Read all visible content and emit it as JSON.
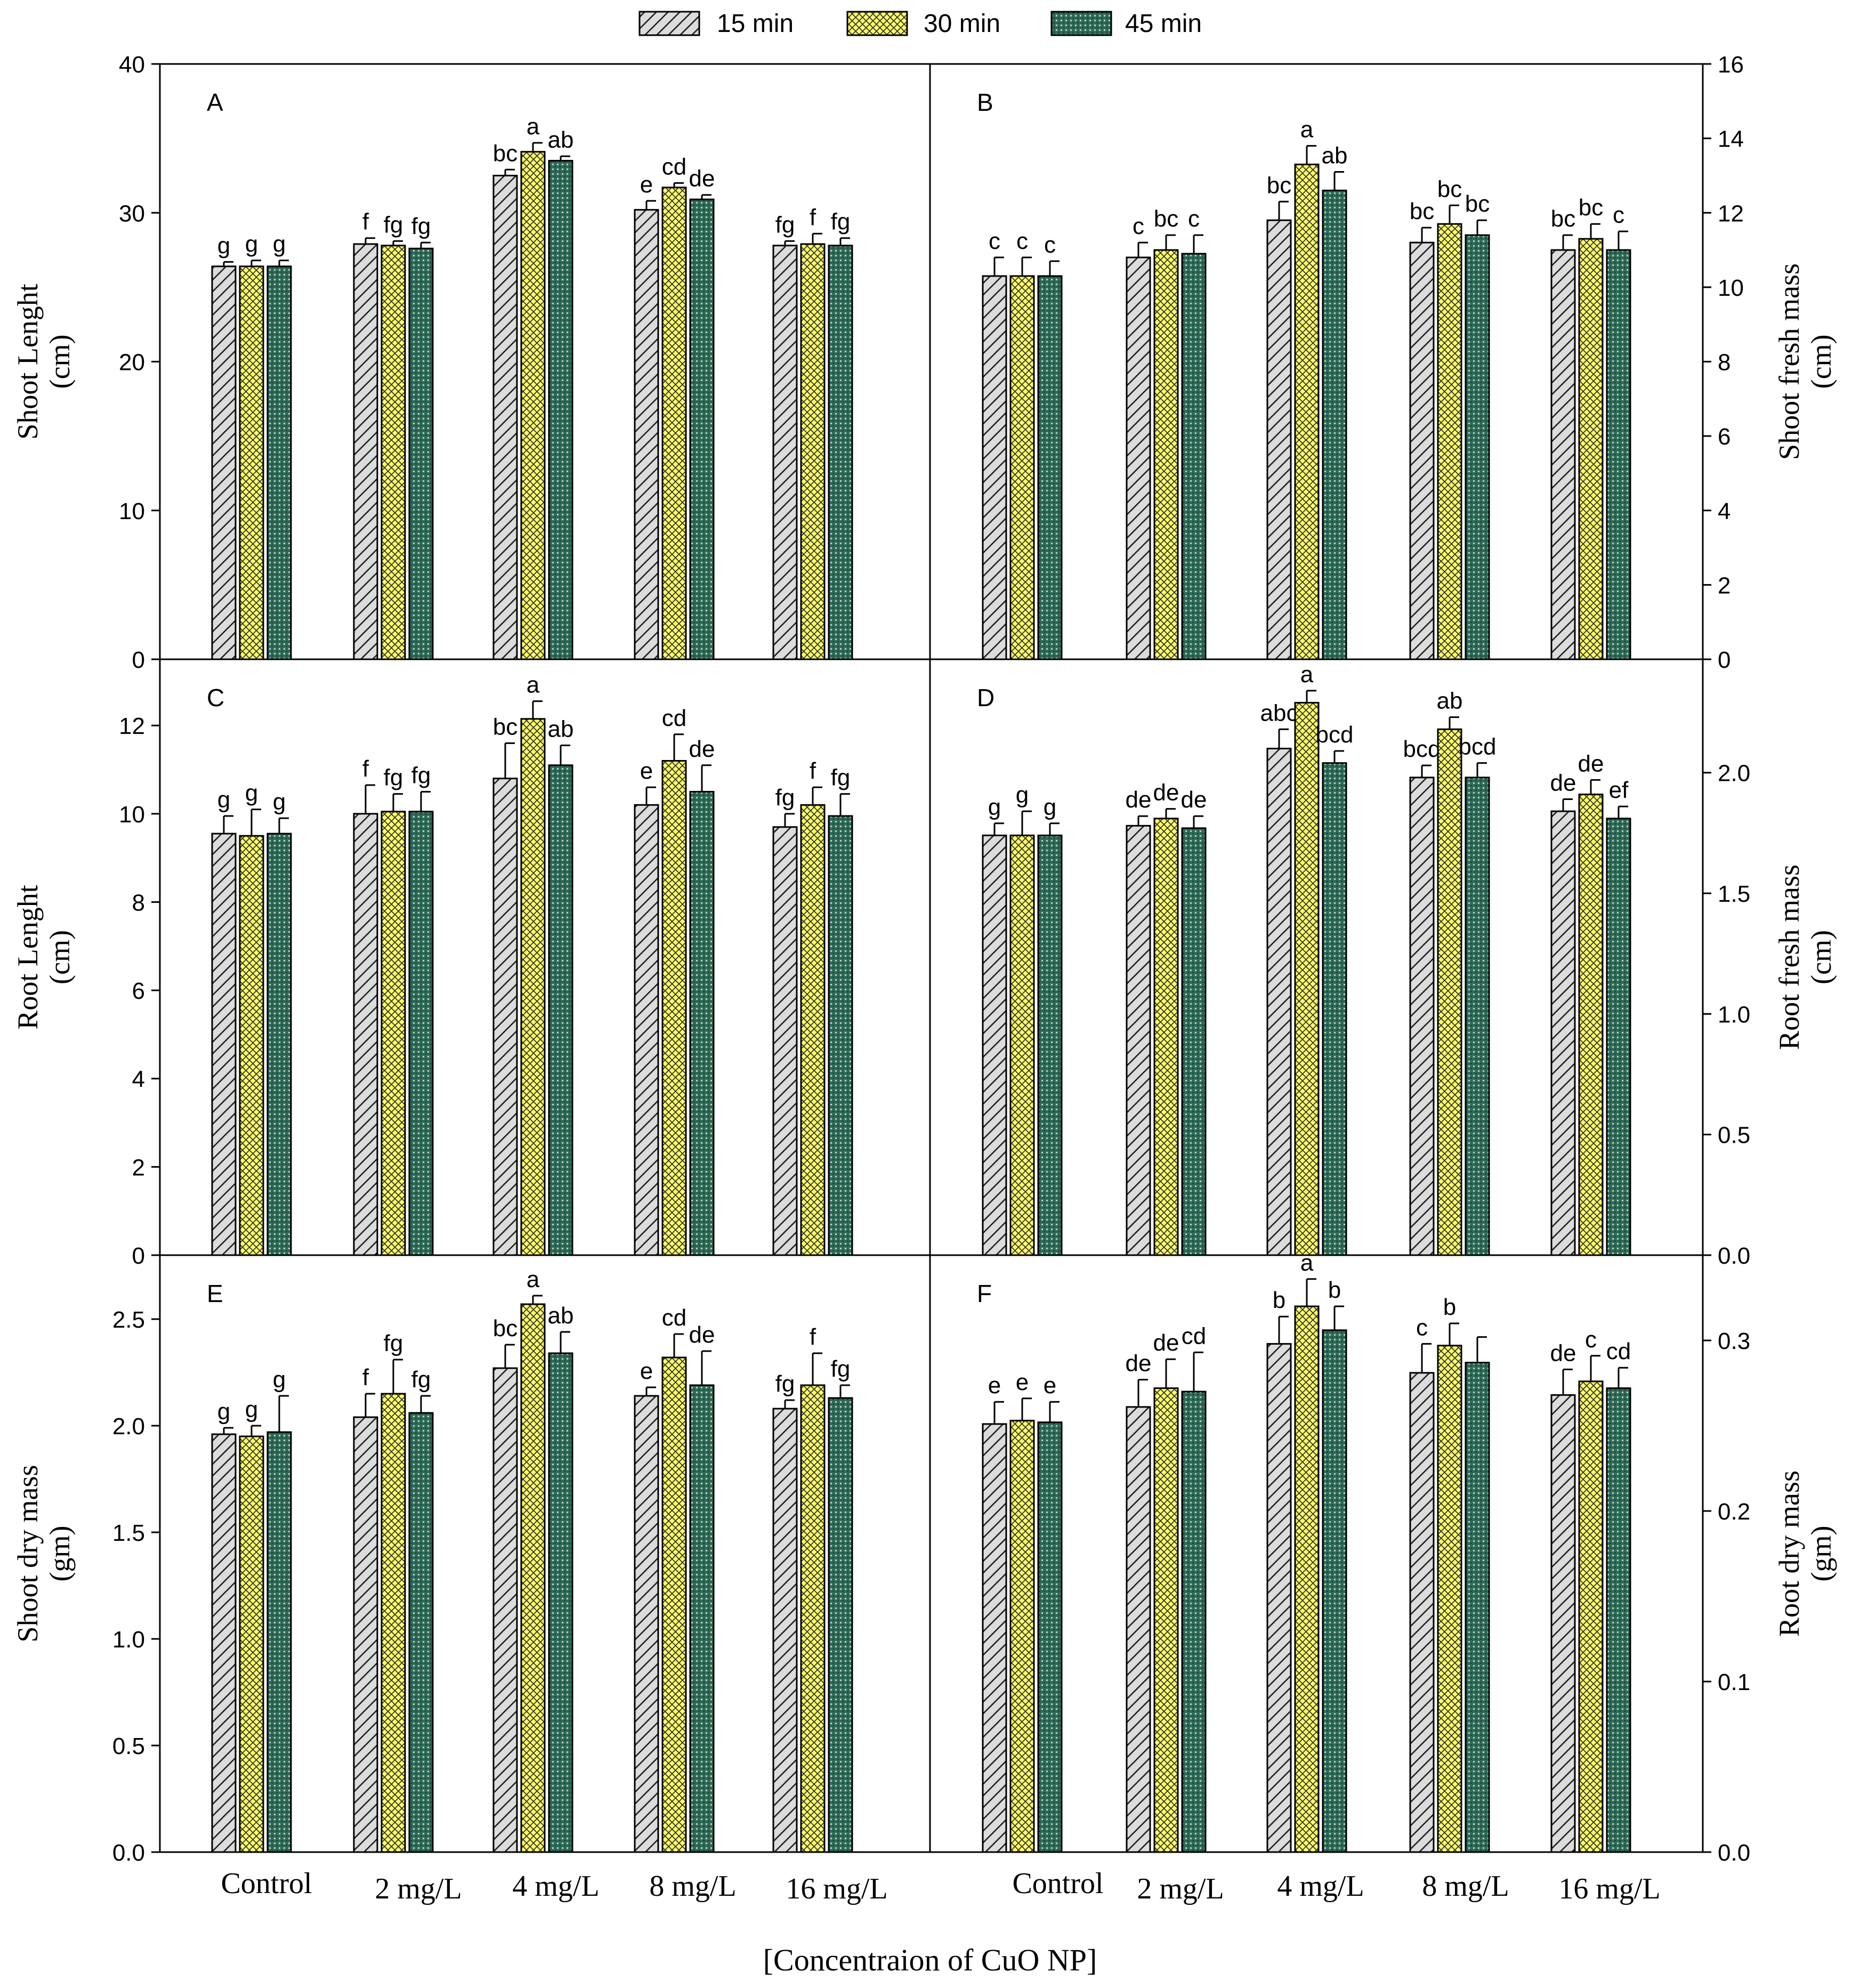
{
  "figure": {
    "xlabel": "[Concentraion of CuO NP]",
    "legend": [
      {
        "name": "15 min",
        "pattern": "hatch",
        "color": "#dcdcdc"
      },
      {
        "name": "30 min",
        "pattern": "crosshatch",
        "color": "#ffff66"
      },
      {
        "name": "45 min",
        "pattern": "dots",
        "color": "#2e6b58"
      }
    ],
    "categories": [
      "Control",
      "2 mg/L",
      "4 mg/L",
      "8 mg/L",
      "16 mg/L"
    ]
  },
  "chart_data": [
    {
      "panel": "A",
      "type": "bar",
      "ylabel": [
        "Shoot Lenght",
        "(cm)"
      ],
      "axis_side": "left",
      "ylim": [
        0,
        40
      ],
      "yticks": [
        "0",
        "10",
        "20",
        "30",
        "40"
      ],
      "ytick_values": [
        0,
        10,
        20,
        30,
        40
      ],
      "series": [
        {
          "name": "15 min",
          "values": [
            26.4,
            27.9,
            32.5,
            30.2,
            27.8
          ],
          "errors": [
            0.3,
            0.4,
            0.4,
            0.6,
            0.3
          ],
          "labels": [
            "g",
            "f",
            "bc",
            "e",
            "fg"
          ]
        },
        {
          "name": "30 min",
          "values": [
            26.4,
            27.8,
            34.1,
            31.7,
            27.9
          ],
          "errors": [
            0.4,
            0.3,
            0.6,
            0.3,
            0.7
          ],
          "labels": [
            "g",
            "fg",
            "a",
            "cd",
            "f"
          ]
        },
        {
          "name": "45 min",
          "values": [
            26.4,
            27.6,
            33.5,
            30.9,
            27.8
          ],
          "errors": [
            0.4,
            0.4,
            0.3,
            0.3,
            0.5
          ],
          "labels": [
            "g",
            "fg",
            "ab",
            "de",
            "fg"
          ]
        }
      ]
    },
    {
      "panel": "B",
      "type": "bar",
      "ylabel": [
        "Shoot fresh mass",
        "(cm)"
      ],
      "axis_side": "right",
      "ylim": [
        0,
        16
      ],
      "yticks": [
        "0",
        "2",
        "4",
        "6",
        "8",
        "10",
        "12",
        "14",
        "16"
      ],
      "ytick_values": [
        0,
        2,
        4,
        6,
        8,
        10,
        12,
        14,
        16
      ],
      "series": [
        {
          "name": "15 min",
          "values": [
            10.3,
            10.8,
            11.8,
            11.2,
            11.0
          ],
          "errors": [
            0.5,
            0.4,
            0.5,
            0.4,
            0.4
          ],
          "labels": [
            "c",
            "c",
            "bc",
            "bc",
            "bc"
          ]
        },
        {
          "name": "30 min",
          "values": [
            10.3,
            11.0,
            13.3,
            11.7,
            11.3
          ],
          "errors": [
            0.5,
            0.4,
            0.5,
            0.5,
            0.4
          ],
          "labels": [
            "c",
            "bc",
            "a",
            "bc",
            "bc"
          ]
        },
        {
          "name": "45 min",
          "values": [
            10.3,
            10.9,
            12.6,
            11.4,
            11.0
          ],
          "errors": [
            0.4,
            0.5,
            0.5,
            0.4,
            0.5
          ],
          "labels": [
            "c",
            "c",
            "ab",
            "bc",
            "c"
          ]
        }
      ]
    },
    {
      "panel": "C",
      "type": "bar",
      "ylabel": [
        "Root Lenght",
        "(cm)"
      ],
      "axis_side": "left",
      "ylim": [
        0,
        13.5
      ],
      "yticks": [
        "0",
        "2",
        "4",
        "6",
        "8",
        "10",
        "12"
      ],
      "ytick_values": [
        0,
        2,
        4,
        6,
        8,
        10,
        12
      ],
      "series": [
        {
          "name": "15 min",
          "values": [
            9.55,
            10.0,
            10.8,
            10.2,
            9.7
          ],
          "errors": [
            0.4,
            0.65,
            0.8,
            0.4,
            0.3
          ],
          "labels": [
            "g",
            "f",
            "bc",
            "e",
            "fg"
          ]
        },
        {
          "name": "30 min",
          "values": [
            9.5,
            10.05,
            12.15,
            11.2,
            10.2
          ],
          "errors": [
            0.6,
            0.4,
            0.4,
            0.6,
            0.4
          ],
          "labels": [
            "g",
            "fg",
            "a",
            "cd",
            "f"
          ]
        },
        {
          "name": "45 min",
          "values": [
            9.55,
            10.05,
            11.1,
            10.5,
            9.95
          ],
          "errors": [
            0.35,
            0.45,
            0.45,
            0.6,
            0.5
          ],
          "labels": [
            "g",
            "fg",
            "ab",
            "de",
            "fg"
          ]
        }
      ]
    },
    {
      "panel": "D",
      "type": "bar",
      "ylabel": [
        "Root fresh mass",
        "(cm)"
      ],
      "axis_side": "right",
      "ylim": [
        0,
        2.47
      ],
      "yticks": [
        "0.0",
        "0.5",
        "1.0",
        "1.5",
        "2.0"
      ],
      "ytick_values": [
        0,
        0.5,
        1.0,
        1.5,
        2.0
      ],
      "series": [
        {
          "name": "15 min",
          "values": [
            1.74,
            1.78,
            2.1,
            1.98,
            1.84
          ],
          "errors": [
            0.05,
            0.04,
            0.08,
            0.05,
            0.05
          ],
          "labels": [
            "g",
            "de",
            "abc",
            "bcd",
            "de"
          ]
        },
        {
          "name": "30 min",
          "values": [
            1.74,
            1.81,
            2.29,
            2.18,
            1.91
          ],
          "errors": [
            0.1,
            0.04,
            0.05,
            0.05,
            0.06
          ],
          "labels": [
            "g",
            "de",
            "a",
            "ab",
            "de"
          ]
        },
        {
          "name": "45 min",
          "values": [
            1.74,
            1.77,
            2.04,
            1.98,
            1.81
          ],
          "errors": [
            0.05,
            0.05,
            0.05,
            0.06,
            0.05
          ],
          "labels": [
            "g",
            "de",
            "bcd",
            "bcd",
            "ef"
          ]
        }
      ]
    },
    {
      "panel": "E",
      "type": "bar",
      "ylabel": [
        "Shoot dry mass",
        "(gm)"
      ],
      "axis_side": "left",
      "ylim": [
        0,
        2.8
      ],
      "yticks": [
        "0.0",
        "0.5",
        "1.0",
        "1.5",
        "2.0",
        "2.5"
      ],
      "ytick_values": [
        0,
        0.5,
        1.0,
        1.5,
        2.0,
        2.5
      ],
      "series": [
        {
          "name": "15 min",
          "values": [
            1.96,
            2.04,
            2.27,
            2.14,
            2.08
          ],
          "errors": [
            0.03,
            0.11,
            0.11,
            0.04,
            0.04
          ],
          "labels": [
            "g",
            "f",
            "bc",
            "e",
            "fg"
          ]
        },
        {
          "name": "30 min",
          "values": [
            1.95,
            2.15,
            2.57,
            2.32,
            2.19
          ],
          "errors": [
            0.05,
            0.16,
            0.04,
            0.11,
            0.15
          ],
          "labels": [
            "g",
            "fg",
            "a",
            "cd",
            "f"
          ]
        },
        {
          "name": "45 min",
          "values": [
            1.97,
            2.06,
            2.34,
            2.19,
            2.13
          ],
          "errors": [
            0.17,
            0.08,
            0.1,
            0.16,
            0.06
          ],
          "labels": [
            "g",
            "fg",
            "ab",
            "de",
            "fg"
          ]
        }
      ]
    },
    {
      "panel": "F",
      "type": "bar",
      "ylabel": [
        "Root dry mass",
        "(gm)"
      ],
      "axis_side": "right",
      "ylim": [
        0,
        0.35
      ],
      "yticks": [
        "0.0",
        "0.1",
        "0.2",
        "0.3"
      ],
      "ytick_values": [
        0,
        0.1,
        0.2,
        0.3
      ],
      "series": [
        {
          "name": "15 min",
          "values": [
            0.251,
            0.261,
            0.298,
            0.281,
            0.268
          ],
          "errors": [
            0.013,
            0.016,
            0.016,
            0.017,
            0.015
          ],
          "labels": [
            "e",
            "de",
            "b",
            "c",
            "de"
          ]
        },
        {
          "name": "30 min",
          "values": [
            0.253,
            0.272,
            0.32,
            0.297,
            0.276
          ],
          "errors": [
            0.013,
            0.017,
            0.016,
            0.013,
            0.015
          ],
          "labels": [
            "e",
            "de",
            "a",
            "b",
            "c"
          ]
        },
        {
          "name": "45 min",
          "values": [
            0.252,
            0.27,
            0.306,
            0.287,
            0.272
          ],
          "errors": [
            0.012,
            0.023,
            0.014,
            0.015,
            0.012
          ],
          "labels": [
            "e",
            "cd",
            "b",
            "",
            "cd"
          ]
        }
      ]
    }
  ]
}
